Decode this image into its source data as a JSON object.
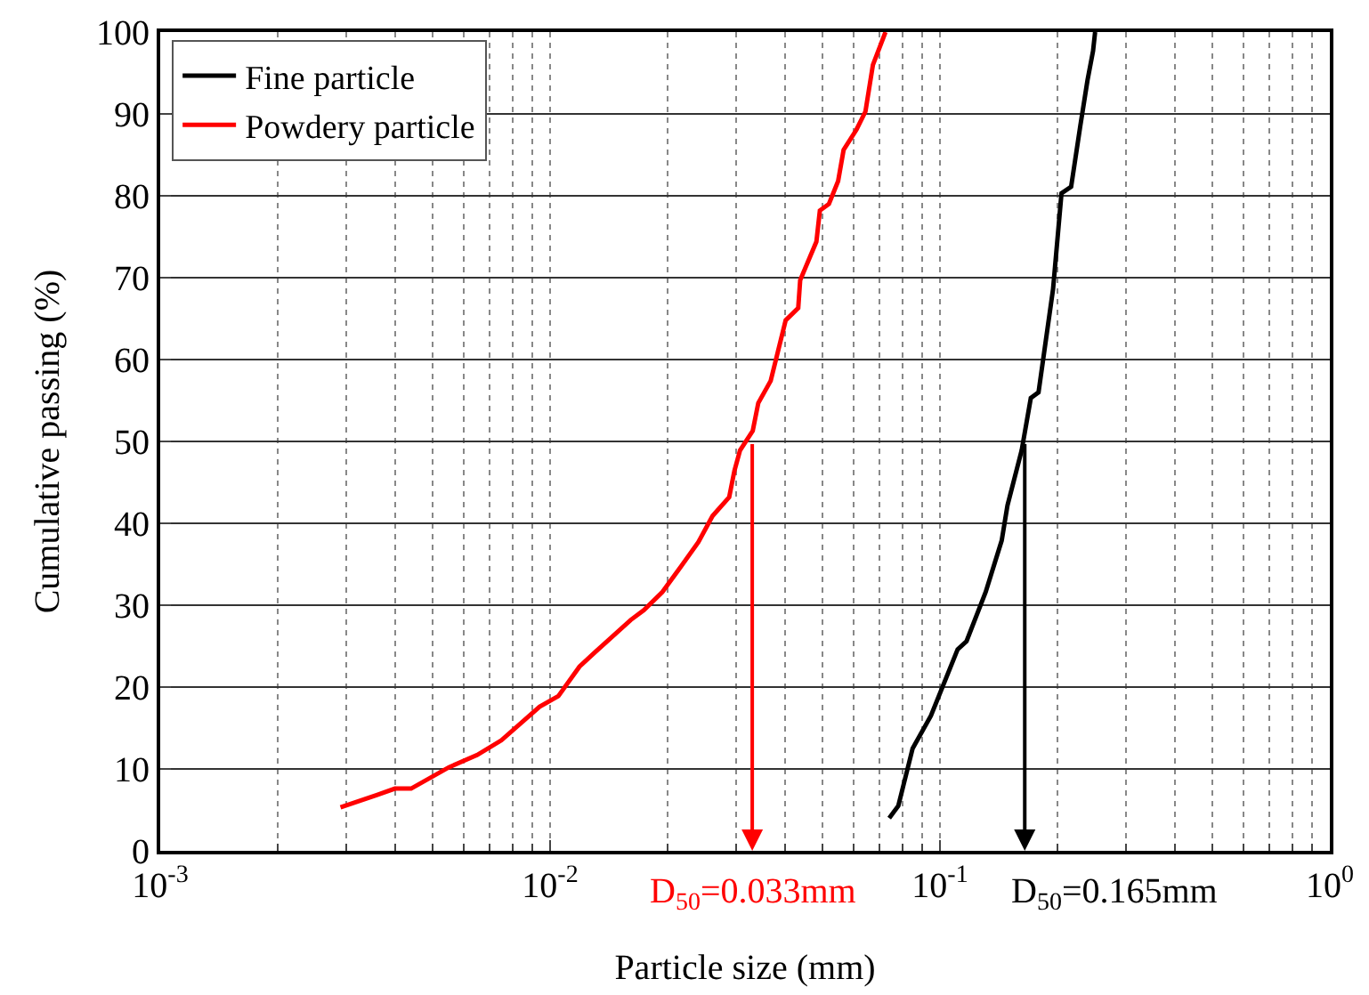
{
  "chart_data": {
    "type": "line",
    "xlabel": "Particle size (mm)",
    "ylabel": "Cumulative passing (%)",
    "log": "x",
    "xlim": [
      0.001,
      1
    ],
    "xticks": [
      {
        "value": 0.001,
        "label": "10$^{-3}$"
      },
      {
        "value": 0.01,
        "label": "10$^{-2}$"
      },
      {
        "value": 0.1,
        "label": "10$^{-1}$"
      },
      {
        "value": 1,
        "label": "10$^{0}$"
      }
    ],
    "ylim": [
      0,
      100
    ],
    "yticks": [
      0,
      10,
      20,
      30,
      40,
      50,
      60,
      70,
      80,
      90,
      100
    ],
    "grid": true,
    "legend": "top left",
    "line_style": "solid",
    "series": [
      {
        "name": "Fine particle",
        "color": "#000000",
        "x": [
          0.0741,
          0.0782,
          0.0851,
          0.0948,
          0.111,
          0.117,
          0.131,
          0.144,
          0.149,
          0.162,
          0.171,
          0.179,
          0.195,
          0.205,
          0.217,
          0.229,
          0.239,
          0.247,
          0.25
        ],
        "values": [
          4.0,
          5.5,
          12.5,
          16.5,
          24.6,
          25.6,
          31.6,
          37.9,
          42.2,
          48.9,
          55.3,
          56.0,
          68.6,
          80.3,
          81.1,
          88.5,
          94.1,
          97.7,
          100
        ]
      },
      {
        "name": "Powdery particle",
        "color": "#ff0000",
        "x": [
          0.0029,
          0.00359,
          0.004,
          0.0044,
          0.0055,
          0.0065,
          0.0075,
          0.0094,
          0.0105,
          0.0119,
          0.013,
          0.0161,
          0.0174,
          0.0194,
          0.0215,
          0.024,
          0.0261,
          0.0288,
          0.0297,
          0.0307,
          0.0331,
          0.0342,
          0.0368,
          0.0402,
          0.0433,
          0.0438,
          0.0482,
          0.0492,
          0.0519,
          0.0548,
          0.0566,
          0.0611,
          0.0644,
          0.0673,
          0.0725
        ],
        "values": [
          5.3,
          6.8,
          7.6,
          7.6,
          10.2,
          11.7,
          13.5,
          17.6,
          18.9,
          22.5,
          24.2,
          28.2,
          29.4,
          31.6,
          34.5,
          37.7,
          40.9,
          43.2,
          46.4,
          48.9,
          51.3,
          54.7,
          57.4,
          64.8,
          66.3,
          69.7,
          74.4,
          78.2,
          79.0,
          81.8,
          85.6,
          88.1,
          90.3,
          96.0,
          100
        ]
      }
    ],
    "annotations": [
      {
        "text": "D$_{50}$=0.165mm",
        "x": 0.165,
        "y": 50
      },
      {
        "text": "D$_{50}$=0.033mm",
        "x": 0.033,
        "y": 50
      }
    ]
  }
}
